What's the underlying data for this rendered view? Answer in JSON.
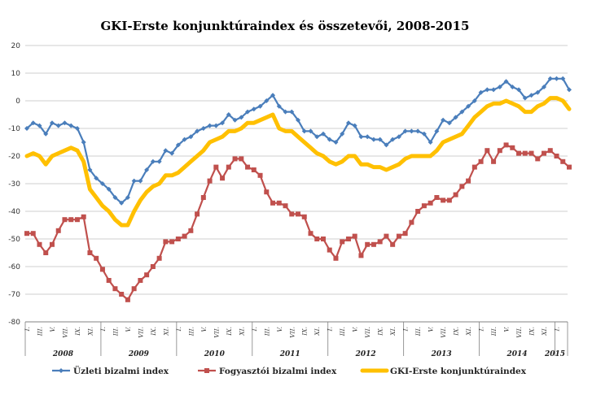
{
  "chart_data": {
    "type": "line",
    "title": "GKI-Erste konjunktúraindex és összetevői, 2008-2015",
    "ylim": [
      -80,
      20
    ],
    "yticks": [
      -80,
      -70,
      -60,
      -50,
      -40,
      -30,
      -20,
      -10,
      0,
      10,
      20
    ],
    "grid": true,
    "legend_position": "bottom",
    "x_month_labels": [
      "I.",
      "III.",
      "V.",
      "VII.",
      "IX.",
      "XI."
    ],
    "year_labels": [
      "2008",
      "2009",
      "2010",
      "2011",
      "2012",
      "2013",
      "2014",
      "2015"
    ],
    "series": [
      {
        "name": "Üzleti bizalmi index",
        "color": "#4a7ebb",
        "marker": "diamond",
        "values": [
          -10,
          -8,
          -9,
          -12,
          -8,
          -9,
          -8,
          -9,
          -10,
          -15,
          -25,
          -28,
          -30,
          -32,
          -35,
          -37,
          -35,
          -29,
          -29,
          -25,
          -22,
          -22,
          -18,
          -19,
          -16,
          -14,
          -13,
          -11,
          -10,
          -9,
          -9,
          -8,
          -5,
          -7,
          -6,
          -4,
          -3,
          -2,
          0,
          2,
          -2,
          -4,
          -4,
          -7,
          -11,
          -11,
          -13,
          -12,
          -14,
          -15,
          -12,
          -8,
          -9,
          -13,
          -13,
          -14,
          -14,
          -16,
          -14,
          -13,
          -11,
          -11,
          -11,
          -12,
          -15,
          -11,
          -7,
          -8,
          -6,
          -4,
          -2,
          0,
          3,
          4,
          4,
          5,
          7,
          5,
          4,
          1,
          2,
          3,
          5,
          8,
          8,
          8,
          4
        ]
      },
      {
        "name": "Fogyasztói bizalmi index",
        "color": "#c0504d",
        "marker": "square",
        "values": [
          -48,
          -48,
          -52,
          -55,
          -52,
          -47,
          -43,
          -43,
          -43,
          -42,
          -55,
          -57,
          -61,
          -65,
          -68,
          -70,
          -72,
          -68,
          -65,
          -63,
          -60,
          -57,
          -51,
          -51,
          -50,
          -49,
          -47,
          -41,
          -35,
          -29,
          -24,
          -28,
          -24,
          -21,
          -21,
          -24,
          -25,
          -27,
          -33,
          -37,
          -37,
          -38,
          -41,
          -41,
          -42,
          -48,
          -50,
          -50,
          -54,
          -57,
          -51,
          -50,
          -49,
          -56,
          -52,
          -52,
          -51,
          -49,
          -52,
          -49,
          -48,
          -44,
          -40,
          -38,
          -37,
          -35,
          -36,
          -36,
          -34,
          -31,
          -29,
          -24,
          -22,
          -18,
          -22,
          -18,
          -16,
          -17,
          -19,
          -19,
          -19,
          -21,
          -19,
          -18,
          -20,
          -22,
          -24
        ]
      },
      {
        "name": "GKI-Erste konjunktúraindex",
        "color": "#ffc000",
        "marker": "none",
        "values": [
          -20,
          -19,
          -20,
          -23,
          -20,
          -19,
          -18,
          -17,
          -18,
          -22,
          -32,
          -35,
          -38,
          -40,
          -43,
          -45,
          -45,
          -40,
          -36,
          -33,
          -31,
          -30,
          -27,
          -27,
          -26,
          -24,
          -22,
          -20,
          -18,
          -15,
          -14,
          -13,
          -11,
          -11,
          -10,
          -8,
          -8,
          -7,
          -6,
          -5,
          -10,
          -11,
          -11,
          -13,
          -15,
          -17,
          -19,
          -20,
          -22,
          -23,
          -22,
          -20,
          -20,
          -23,
          -23,
          -24,
          -24,
          -25,
          -24,
          -23,
          -21,
          -20,
          -20,
          -20,
          -20,
          -18,
          -15,
          -14,
          -13,
          -12,
          -9,
          -6,
          -4,
          -2,
          -1,
          -1,
          0,
          -1,
          -2,
          -4,
          -4,
          -2,
          -1,
          1,
          1,
          0,
          -3
        ]
      }
    ]
  }
}
